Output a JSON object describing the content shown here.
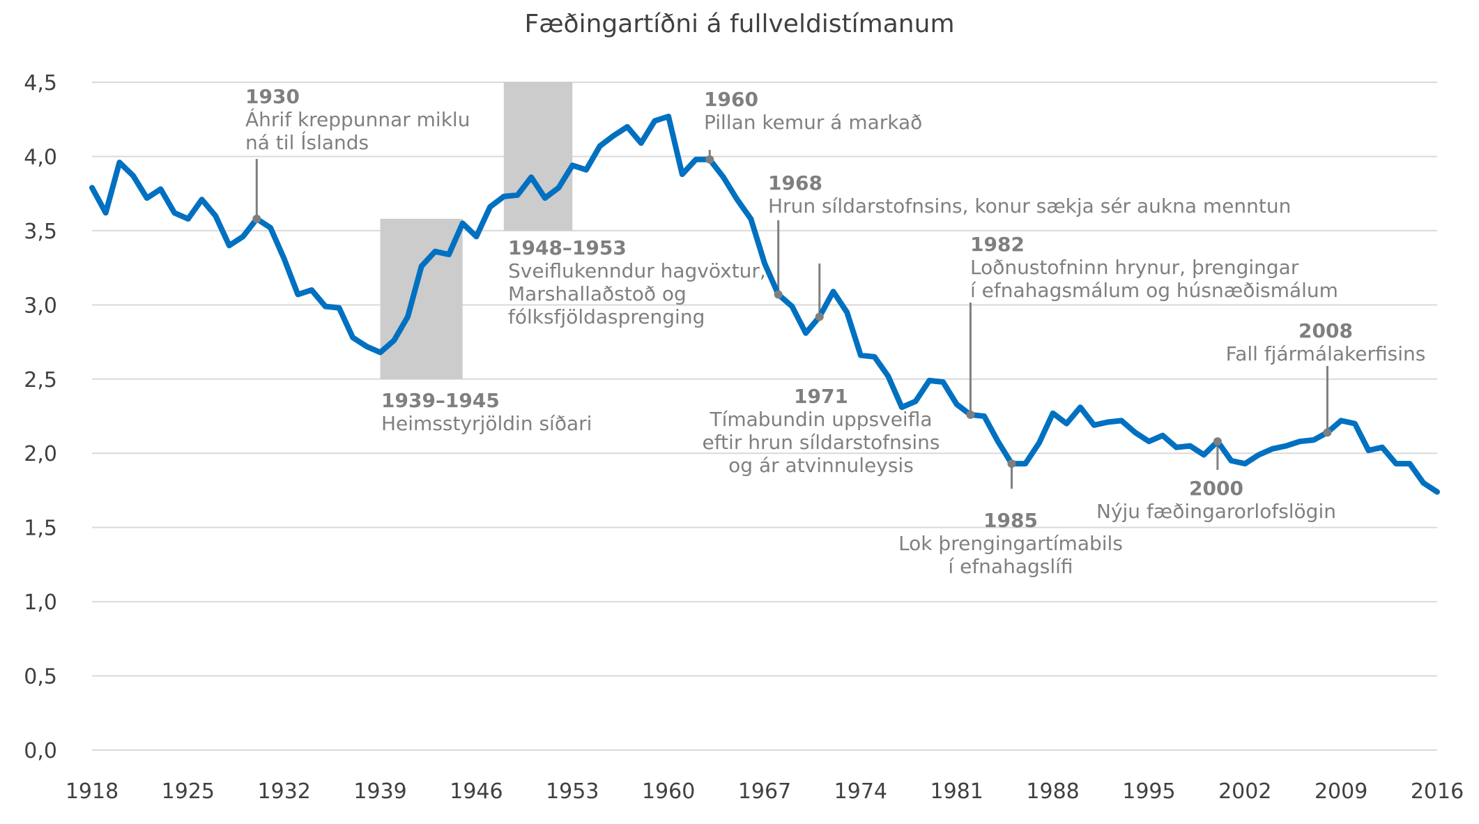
{
  "chart_data": {
    "type": "line",
    "title": "Fæðingartíðni á fullveldistímanum",
    "xlabel": "",
    "ylabel": "",
    "xlim": [
      1918,
      2016
    ],
    "ylim": [
      0,
      4.5
    ],
    "grid": true,
    "y_ticks": [
      "0,0",
      "0,5",
      "1,0",
      "1,5",
      "2,0",
      "2,5",
      "3,0",
      "3,5",
      "4,0",
      "4,5"
    ],
    "x_ticks": [
      "1918",
      "1925",
      "1932",
      "1939",
      "1946",
      "1953",
      "1960",
      "1967",
      "1974",
      "1981",
      "1988",
      "1995",
      "2002",
      "2009",
      "2016"
    ],
    "line_color": "#0070c0",
    "shade_color": "#cccccc",
    "annotation_color": "#7f7f7f",
    "series": [
      {
        "values": [
          [
            1918,
            3.79
          ],
          [
            1919,
            3.62
          ],
          [
            1920,
            3.96
          ],
          [
            1921,
            3.87
          ],
          [
            1922,
            3.72
          ],
          [
            1923,
            3.78
          ],
          [
            1924,
            3.62
          ],
          [
            1925,
            3.58
          ],
          [
            1926,
            3.71
          ],
          [
            1927,
            3.6
          ],
          [
            1928,
            3.4
          ],
          [
            1929,
            3.46
          ],
          [
            1930,
            3.58
          ],
          [
            1931,
            3.52
          ],
          [
            1932,
            3.31
          ],
          [
            1933,
            3.07
          ],
          [
            1934,
            3.1
          ],
          [
            1935,
            2.99
          ],
          [
            1936,
            2.98
          ],
          [
            1937,
            2.78
          ],
          [
            1938,
            2.72
          ],
          [
            1939,
            2.68
          ],
          [
            1940,
            2.76
          ],
          [
            1941,
            2.92
          ],
          [
            1942,
            3.26
          ],
          [
            1943,
            3.36
          ],
          [
            1944,
            3.34
          ],
          [
            1945,
            3.55
          ],
          [
            1946,
            3.46
          ],
          [
            1947,
            3.66
          ],
          [
            1948,
            3.73
          ],
          [
            1949,
            3.74
          ],
          [
            1950,
            3.86
          ],
          [
            1951,
            3.72
          ],
          [
            1952,
            3.79
          ],
          [
            1953,
            3.94
          ],
          [
            1954,
            3.91
          ],
          [
            1955,
            4.07
          ],
          [
            1956,
            4.14
          ],
          [
            1957,
            4.2
          ],
          [
            1958,
            4.09
          ],
          [
            1959,
            4.24
          ],
          [
            1960,
            4.27
          ],
          [
            1961,
            3.88
          ],
          [
            1962,
            3.98
          ],
          [
            1963,
            3.98
          ],
          [
            1964,
            3.86
          ],
          [
            1965,
            3.71
          ],
          [
            1966,
            3.58
          ],
          [
            1967,
            3.28
          ],
          [
            1968,
            3.07
          ],
          [
            1969,
            2.99
          ],
          [
            1970,
            2.81
          ],
          [
            1971,
            2.92
          ],
          [
            1972,
            3.09
          ],
          [
            1973,
            2.95
          ],
          [
            1974,
            2.66
          ],
          [
            1975,
            2.65
          ],
          [
            1976,
            2.52
          ],
          [
            1977,
            2.31
          ],
          [
            1978,
            2.35
          ],
          [
            1979,
            2.49
          ],
          [
            1980,
            2.48
          ],
          [
            1981,
            2.33
          ],
          [
            1982,
            2.26
          ],
          [
            1983,
            2.25
          ],
          [
            1984,
            2.08
          ],
          [
            1985,
            1.93
          ],
          [
            1986,
            1.93
          ],
          [
            1987,
            2.07
          ],
          [
            1988,
            2.27
          ],
          [
            1989,
            2.2
          ],
          [
            1990,
            2.31
          ],
          [
            1991,
            2.19
          ],
          [
            1992,
            2.21
          ],
          [
            1993,
            2.22
          ],
          [
            1994,
            2.14
          ],
          [
            1995,
            2.08
          ],
          [
            1996,
            2.12
          ],
          [
            1997,
            2.04
          ],
          [
            1998,
            2.05
          ],
          [
            1999,
            1.99
          ],
          [
            2000,
            2.08
          ],
          [
            2001,
            1.95
          ],
          [
            2002,
            1.93
          ],
          [
            2003,
            1.99
          ],
          [
            2004,
            2.03
          ],
          [
            2005,
            2.05
          ],
          [
            2006,
            2.08
          ],
          [
            2007,
            2.09
          ],
          [
            2008,
            2.14
          ],
          [
            2009,
            2.22
          ],
          [
            2010,
            2.2
          ],
          [
            2011,
            2.02
          ],
          [
            2012,
            2.04
          ],
          [
            2013,
            1.93
          ],
          [
            2014,
            1.93
          ],
          [
            2015,
            1.8
          ],
          [
            2016,
            1.74
          ]
        ]
      }
    ],
    "shaded_periods": [
      {
        "start": 1939,
        "end": 1945,
        "ymin": 2.5,
        "ymax": 3.58
      },
      {
        "start": 1948,
        "end": 1953,
        "ymin": 3.5,
        "ymax": 4.5
      }
    ],
    "annotations": [
      {
        "year": 1930,
        "value": 3.58,
        "label": "1930",
        "lines": [
          "Áhrif kreppunnar miklu",
          "ná til Íslands"
        ]
      },
      {
        "label": "1939–1945",
        "lines": [
          "Heimsstyrjöldin síðari"
        ]
      },
      {
        "label": "1948–1953",
        "lines": [
          "Sveiflukenndur hagvöxtur,",
          "Marshallaðstoð og",
          "fólksfjöldasprenging"
        ]
      },
      {
        "year": 1963,
        "value": 3.98,
        "label": "1960",
        "lines": [
          "Pillan kemur á markað"
        ]
      },
      {
        "year": 1968,
        "value": 3.07,
        "label": "1968",
        "lines": [
          "Hrun síldarstofnsins, konur sækja sér aukna menntun"
        ]
      },
      {
        "year": 1971,
        "value": 2.92,
        "label": "1971",
        "lines": [
          "Tímabundin uppsveifla",
          "eftir hrun síldarstofnsins",
          "og ár atvinnuleysis"
        ]
      },
      {
        "year": 1982,
        "value": 2.26,
        "label": "1982",
        "lines": [
          "Loðnustofninn hrynur, þrengingar",
          "í efnahagsmálum og húsnæðismálum"
        ]
      },
      {
        "year": 1985,
        "value": 1.93,
        "label": "1985",
        "lines": [
          "Lok þrengingartímabils",
          "í efnahagslífi"
        ]
      },
      {
        "year": 2000,
        "value": 2.08,
        "label": "2000",
        "lines": [
          "Nýju fæðingarorlofslögin"
        ]
      },
      {
        "year": 2008,
        "value": 2.14,
        "label": "2008",
        "lines": [
          "Fall fjármálakerfisins"
        ]
      }
    ]
  }
}
